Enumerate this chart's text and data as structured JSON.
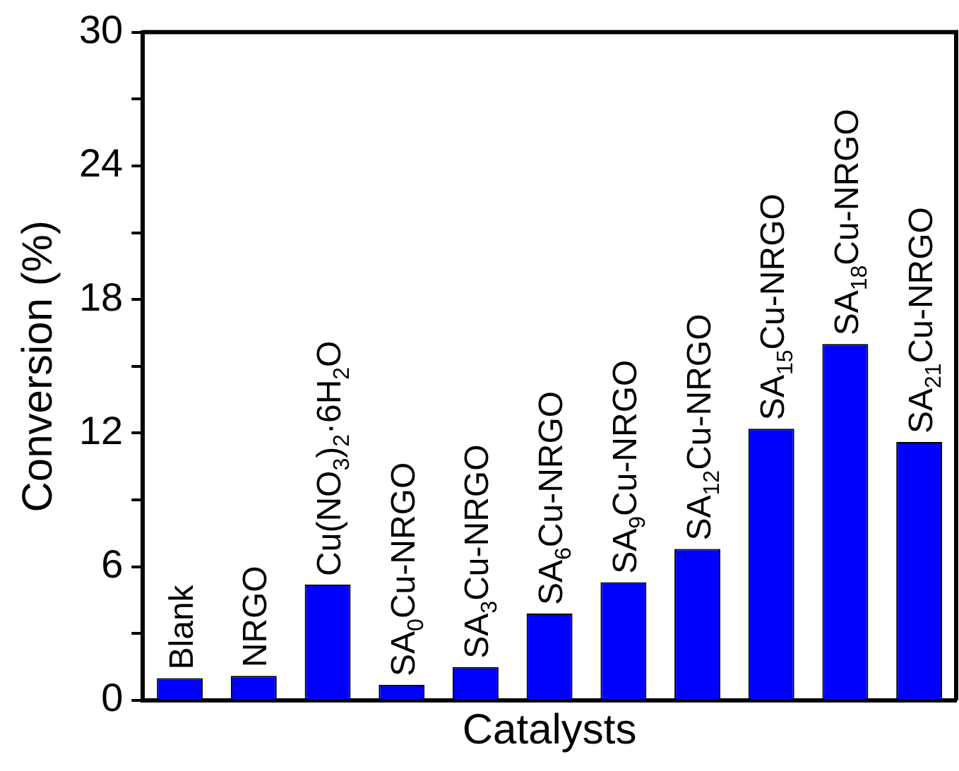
{
  "chart_data": {
    "type": "bar",
    "xlabel": "Catalysts",
    "ylabel": "Conversion (%)",
    "categories": [
      "Blank",
      "NRGO",
      "Cu(NO$_{3}$)$_{2}$·6H$_{2}$O",
      "SA$_{0}$Cu-NRGO",
      "SA$_{3}$Cu-NRGO",
      "SA$_{6}$Cu-NRGO",
      "SA$_{9}$Cu-NRGO",
      "SA$_{12}$Cu-NRGO",
      "SA$_{15}$Cu-NRGO",
      "SA$_{18}$Cu-NRGO",
      "SA$_{21}$Cu-NRGO"
    ],
    "values": [
      1.0,
      1.1,
      5.2,
      0.7,
      1.5,
      3.9,
      5.3,
      6.8,
      12.2,
      16.0,
      11.6
    ],
    "color": "#0000ff",
    "ylim": [
      0,
      30
    ],
    "yticks": [
      0,
      {
        "value": 3,
        "label": null
      },
      6,
      {
        "value": 9,
        "label": null
      },
      12,
      {
        "value": 15,
        "label": null
      },
      18,
      {
        "value": 21,
        "label": null
      },
      24,
      {
        "value": 27,
        "label": null
      },
      30
    ]
  }
}
